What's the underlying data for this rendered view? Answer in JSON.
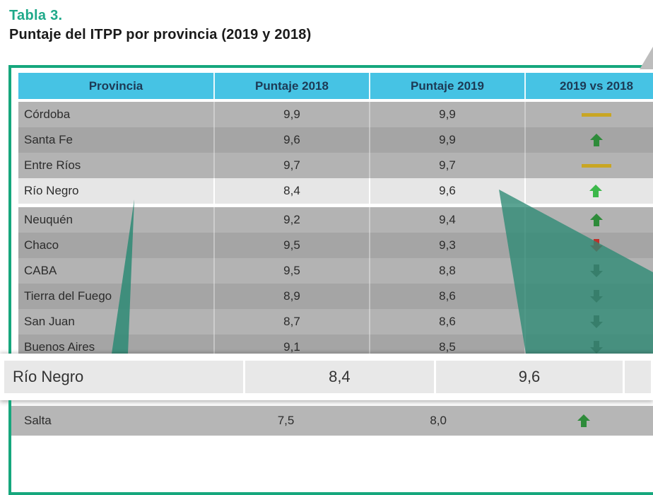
{
  "caption": {
    "label": "Tabla 3.",
    "title": "Puntaje del ITPP por provincia (2019 y 2018)"
  },
  "table": {
    "headers": [
      "Provincia",
      "Puntaje 2018",
      "Puntaje 2019",
      "2019 vs 2018"
    ],
    "rows": [
      {
        "provincia": "Córdoba",
        "p2018": "9,9",
        "p2019": "9,9",
        "trend": "equal"
      },
      {
        "provincia": "Santa Fe",
        "p2018": "9,6",
        "p2019": "9,9",
        "trend": "up"
      },
      {
        "provincia": "Entre Ríos",
        "p2018": "9,7",
        "p2019": "9,7",
        "trend": "equal"
      },
      {
        "provincia": "Río Negro",
        "p2018": "8,4",
        "p2019": "9,6",
        "trend": "up",
        "highlighted": true
      },
      {
        "provincia": "Neuquén",
        "p2018": "9,2",
        "p2019": "9,4",
        "trend": "up"
      },
      {
        "provincia": "Chaco",
        "p2018": "9,5",
        "p2019": "9,3",
        "trend": "down"
      },
      {
        "provincia": "CABA",
        "p2018": "9,5",
        "p2019": "8,8",
        "trend": "down"
      },
      {
        "provincia": "Tierra del Fuego",
        "p2018": "8,9",
        "p2019": "8,6",
        "trend": "down"
      },
      {
        "provincia": "San Juan",
        "p2018": "8,7",
        "p2019": "8,6",
        "trend": "down"
      },
      {
        "provincia": "Buenos Aires",
        "p2018": "9,1",
        "p2019": "8,5",
        "trend": "down"
      }
    ]
  },
  "zoomed_row": {
    "provincia": "Río Negro",
    "p2018": "8,4",
    "p2019": "9,6"
  },
  "bottom_row": {
    "provincia": "Salta",
    "p2018": "7,5",
    "p2019": "8,0",
    "trend": "up"
  },
  "trend_icons": {
    "up": "arrow-up-icon",
    "down": "arrow-down-icon",
    "equal": "dash-icon"
  },
  "colors": {
    "accent_green": "#16a77d",
    "caption_green": "#1fa98a",
    "header_blue": "#46c3e4",
    "up_green": "#2e8b3a",
    "up_highlight_green": "#3cb84a",
    "down_red": "#c0302a",
    "down_dark": "#5a5248",
    "equal_gold": "#c9a623"
  }
}
